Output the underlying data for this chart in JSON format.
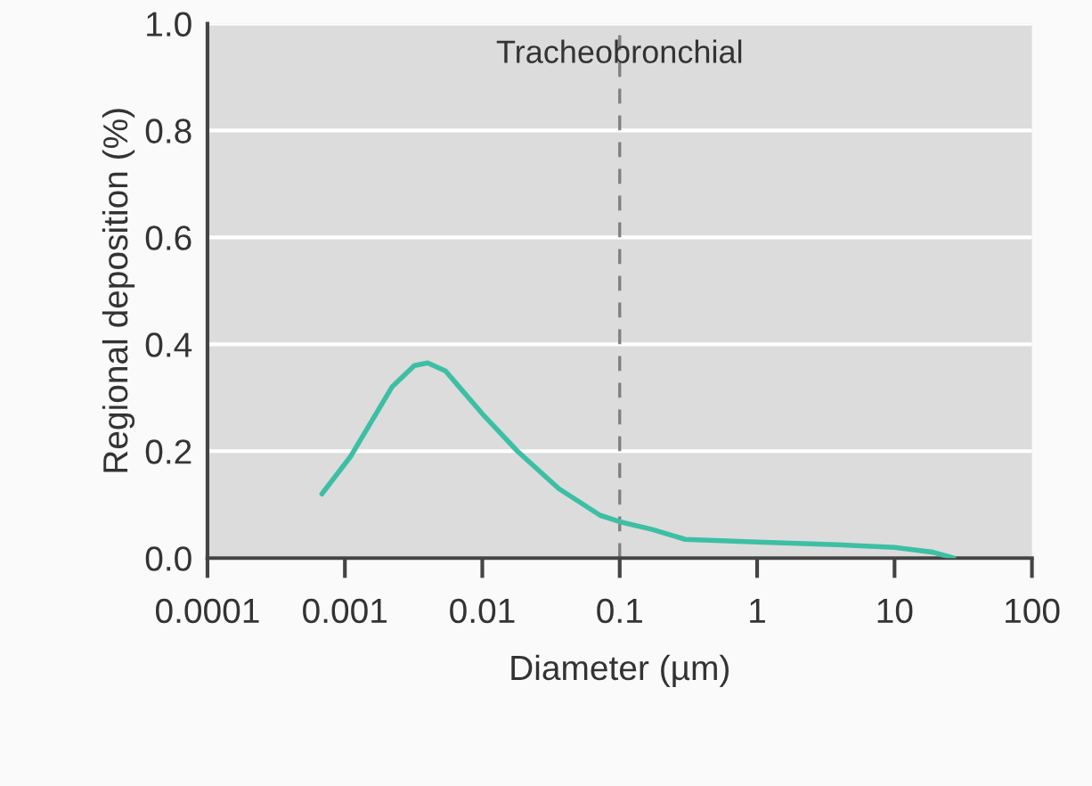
{
  "chart_data": {
    "type": "line",
    "xlabel": "Diameter (µm)",
    "ylabel": "Regional deposition (%)",
    "annotations": [
      "Tracheobronchial"
    ],
    "series": [
      {
        "color": "#3dbfa5",
        "x": [
          0.00068,
          0.0011,
          0.0022,
          0.0032,
          0.004,
          0.0054,
          0.01,
          0.018,
          0.036,
          0.072,
          0.1,
          0.17,
          0.3,
          1,
          3.8,
          10,
          19,
          27
        ],
        "values": [
          0.12,
          0.19,
          0.32,
          0.36,
          0.365,
          0.35,
          0.27,
          0.2,
          0.13,
          0.08,
          0.068,
          0.054,
          0.035,
          0.03,
          0.025,
          0.02,
          0.011,
          0.0
        ]
      }
    ],
    "log": "x",
    "xlim": [
      0.0001,
      100
    ],
    "xticks": [
      0.0001,
      0.001,
      0.01,
      0.1,
      1,
      10,
      100
    ],
    "ylim": [
      0.0,
      1.0
    ],
    "yticks": [
      {
        "value": 0,
        "label": "0.0"
      },
      0.2,
      0.4,
      0.6,
      0.8,
      {
        "value": 1,
        "label": "1.0"
      }
    ],
    "grid": "y",
    "ref_lines": [
      {
        "axis": "x",
        "value": 0.1,
        "color": "#808080",
        "line_style": "dashed"
      }
    ]
  }
}
